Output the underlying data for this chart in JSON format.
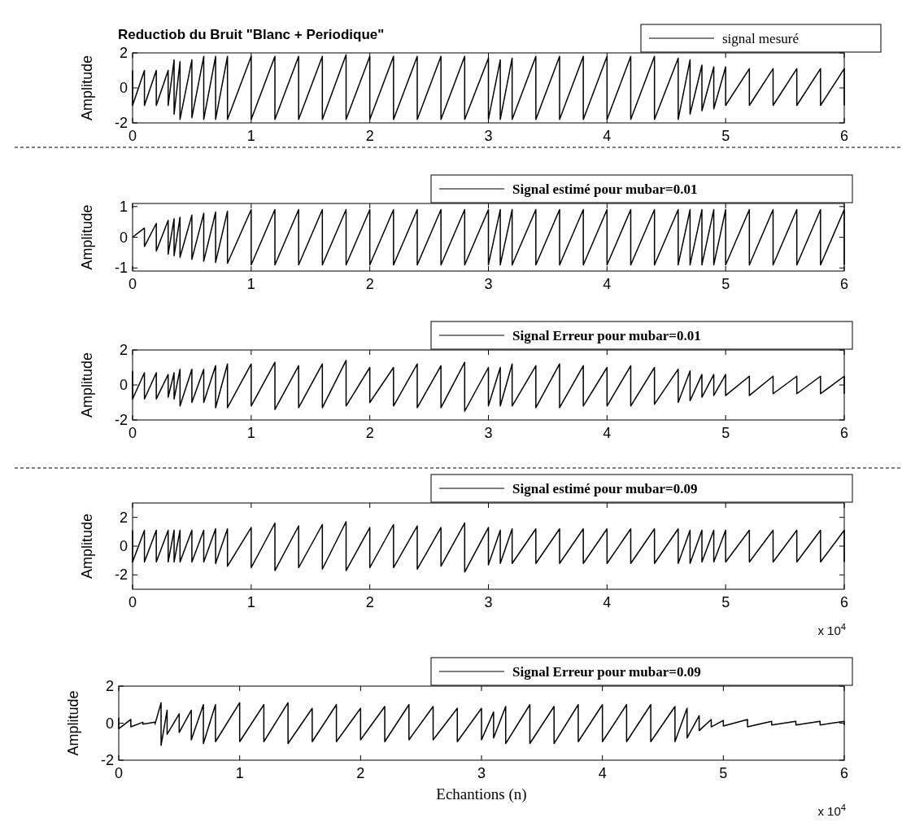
{
  "chart_data": [
    {
      "type": "line",
      "title": "Reductiob du Bruit \"Blanc + Periodique\"",
      "ylabel": "Amplitude",
      "legend": "top right",
      "xlim": [
        0,
        6
      ],
      "xticks": [
        0,
        1,
        2,
        3,
        4,
        5,
        6
      ],
      "ylim": [
        -2,
        2
      ],
      "yticks": [
        -2,
        0,
        2
      ],
      "x": [
        0,
        0,
        0.1,
        0.1,
        0.2,
        0.2,
        0.3,
        0.3,
        0.35,
        0.35,
        0.4,
        0.4,
        0.5,
        0.5,
        0.6,
        0.6,
        0.7,
        0.7,
        0.8,
        0.8,
        1.0,
        1.0,
        1.2,
        1.2,
        1.4,
        1.4,
        1.6,
        1.6,
        1.8,
        1.8,
        2.0,
        2.0,
        2.2,
        2.2,
        2.4,
        2.4,
        2.6,
        2.6,
        2.8,
        2.8,
        3.0,
        3.0,
        3.1,
        3.1,
        3.2,
        3.2,
        3.4,
        3.4,
        3.6,
        3.6,
        3.8,
        3.8,
        4.0,
        4.0,
        4.2,
        4.2,
        4.4,
        4.4,
        4.6,
        4.6,
        4.7,
        4.7,
        4.8,
        4.8,
        4.9,
        4.9,
        5.0,
        5.0,
        5.2,
        5.2,
        5.4,
        5.4,
        5.6,
        5.6,
        5.8,
        5.8,
        6.0,
        6.0
      ],
      "series": [
        {
          "name": "signal mesuré",
          "color": "#000000",
          "values": [
            1.0,
            -1.0,
            1.0,
            -1.0,
            1.0,
            -1.0,
            1.0,
            -1.0,
            1.6,
            -1.5,
            1.5,
            -1.8,
            1.6,
            -1.7,
            1.8,
            -1.8,
            1.8,
            -1.8,
            1.8,
            -1.8,
            1.8,
            -1.8,
            1.8,
            -1.8,
            1.8,
            -1.8,
            1.8,
            -1.8,
            1.9,
            -1.8,
            1.8,
            -1.8,
            1.8,
            -1.8,
            1.8,
            -1.8,
            1.8,
            -1.8,
            1.8,
            -1.8,
            1.7,
            -1.8,
            1.6,
            -1.8,
            1.7,
            -1.8,
            1.8,
            -1.8,
            1.8,
            -1.8,
            1.8,
            -1.8,
            1.8,
            -1.8,
            1.8,
            -1.8,
            1.8,
            -1.8,
            1.7,
            -1.8,
            1.6,
            -1.5,
            1.3,
            -1.3,
            1.2,
            -1.2,
            1.2,
            -1.0,
            1.1,
            -1.0,
            1.1,
            -1.0,
            1.1,
            -1.0,
            1.1,
            -1.0,
            1.1,
            -1.0
          ]
        }
      ]
    },
    {
      "type": "line",
      "ylabel": "Amplitude",
      "legend": "top right",
      "xlim": [
        0,
        6
      ],
      "xticks": [
        0,
        1,
        2,
        3,
        4,
        5,
        6
      ],
      "ylim": [
        -1.1,
        1.1
      ],
      "yticks": [
        -1,
        0,
        1
      ],
      "x": [
        0,
        0,
        0.1,
        0.1,
        0.2,
        0.2,
        0.3,
        0.3,
        0.35,
        0.35,
        0.4,
        0.4,
        0.5,
        0.5,
        0.6,
        0.6,
        0.7,
        0.7,
        0.8,
        0.8,
        1.0,
        1.0,
        1.2,
        1.2,
        1.4,
        1.4,
        1.6,
        1.6,
        1.8,
        1.8,
        2.0,
        2.0,
        2.2,
        2.2,
        2.4,
        2.4,
        2.6,
        2.6,
        2.8,
        2.8,
        3.0,
        3.0,
        3.1,
        3.1,
        3.2,
        3.2,
        3.4,
        3.4,
        3.6,
        3.6,
        3.8,
        3.8,
        4.0,
        4.0,
        4.2,
        4.2,
        4.4,
        4.4,
        4.6,
        4.6,
        4.7,
        4.7,
        4.8,
        4.8,
        4.9,
        4.9,
        5.0,
        5.0,
        5.2,
        5.2,
        5.4,
        5.4,
        5.6,
        5.6,
        5.8,
        5.8,
        6.0,
        6.0
      ],
      "series": [
        {
          "name": "Signal estimé pour mubar=0.01",
          "color": "#000000",
          "values": [
            0,
            0,
            0.3,
            -0.3,
            0.45,
            -0.45,
            0.55,
            -0.55,
            0.6,
            -0.6,
            0.65,
            -0.65,
            0.72,
            -0.72,
            0.78,
            -0.78,
            0.82,
            -0.82,
            0.85,
            -0.85,
            0.9,
            -0.9,
            0.9,
            -0.9,
            0.9,
            -0.9,
            0.9,
            -0.9,
            0.9,
            -0.9,
            0.9,
            -0.9,
            0.9,
            -0.9,
            0.9,
            -0.9,
            0.9,
            -0.9,
            0.9,
            -0.9,
            0.9,
            -0.9,
            0.9,
            -0.9,
            0.9,
            -0.9,
            0.9,
            -0.9,
            0.9,
            -0.9,
            0.9,
            -0.9,
            0.9,
            -0.9,
            0.9,
            -0.9,
            0.9,
            -0.9,
            0.9,
            -0.9,
            0.9,
            -0.9,
            0.9,
            -0.9,
            0.9,
            -0.9,
            0.9,
            -0.9,
            0.9,
            -0.9,
            0.9,
            -0.9,
            0.9,
            -0.9,
            0.9,
            -0.9,
            0.9,
            -0.9
          ]
        }
      ]
    },
    {
      "type": "line",
      "ylabel": "Amplitude",
      "legend": "top right",
      "xlim": [
        0,
        6
      ],
      "xticks": [
        0,
        1,
        2,
        3,
        4,
        5,
        6
      ],
      "ylim": [
        -2,
        2
      ],
      "yticks": [
        -2,
        0,
        2
      ],
      "x": [
        0,
        0,
        0.1,
        0.1,
        0.2,
        0.2,
        0.3,
        0.3,
        0.35,
        0.35,
        0.4,
        0.4,
        0.5,
        0.5,
        0.6,
        0.6,
        0.7,
        0.7,
        0.8,
        0.8,
        1.0,
        1.0,
        1.2,
        1.2,
        1.4,
        1.4,
        1.6,
        1.6,
        1.8,
        1.8,
        2.0,
        2.0,
        2.2,
        2.2,
        2.4,
        2.4,
        2.6,
        2.6,
        2.8,
        2.8,
        3.0,
        3.0,
        3.1,
        3.1,
        3.2,
        3.2,
        3.4,
        3.4,
        3.6,
        3.6,
        3.8,
        3.8,
        4.0,
        4.0,
        4.2,
        4.2,
        4.4,
        4.4,
        4.6,
        4.6,
        4.7,
        4.7,
        4.8,
        4.8,
        4.9,
        4.9,
        5.0,
        5.0,
        5.2,
        5.2,
        5.4,
        5.4,
        5.6,
        5.6,
        5.8,
        5.8,
        6.0,
        6.0
      ],
      "series": [
        {
          "name": "Signal Erreur pour mubar=0.01",
          "color": "#000000",
          "values": [
            0.8,
            -0.8,
            0.7,
            -0.8,
            0.7,
            -0.8,
            0.6,
            -0.7,
            0.7,
            -0.8,
            0.9,
            -1.2,
            0.9,
            -1.0,
            0.9,
            -1.0,
            1.1,
            -1.3,
            1.2,
            -1.3,
            1.2,
            -1.2,
            1.3,
            -1.4,
            1.1,
            -1.3,
            1.2,
            -1.3,
            1.4,
            -1.2,
            1.0,
            -1.0,
            1.0,
            -1.2,
            1.2,
            -1.3,
            1.1,
            -1.3,
            1.3,
            -1.5,
            1.0,
            -1.2,
            1.0,
            -1.2,
            1.2,
            -1.2,
            1.1,
            -1.3,
            1.2,
            -1.3,
            1.1,
            -1.2,
            1.0,
            -1.2,
            1.1,
            -1.2,
            1.0,
            -1.1,
            0.9,
            -1.0,
            0.8,
            -0.9,
            0.6,
            -0.7,
            0.6,
            -0.6,
            0.6,
            -0.6,
            0.5,
            -0.6,
            0.5,
            -0.5,
            0.5,
            -0.5,
            0.5,
            -0.5,
            0.5,
            -0.5
          ]
        }
      ]
    },
    {
      "type": "line",
      "ylabel": "Amplitude",
      "legend": "top right",
      "annotations": [
        "x 10$^{4}$"
      ],
      "xlim": [
        0,
        6
      ],
      "xticks": [
        0,
        1,
        2,
        3,
        4,
        5,
        6
      ],
      "ylim": [
        -3,
        3
      ],
      "yticks": [
        -2,
        0,
        2
      ],
      "x": [
        0,
        0,
        0.1,
        0.1,
        0.2,
        0.2,
        0.3,
        0.3,
        0.35,
        0.35,
        0.4,
        0.4,
        0.5,
        0.5,
        0.6,
        0.6,
        0.7,
        0.7,
        0.8,
        0.8,
        1.0,
        1.0,
        1.2,
        1.2,
        1.4,
        1.4,
        1.6,
        1.6,
        1.8,
        1.8,
        2.0,
        2.0,
        2.2,
        2.2,
        2.4,
        2.4,
        2.6,
        2.6,
        2.8,
        2.8,
        3.0,
        3.0,
        3.1,
        3.1,
        3.2,
        3.2,
        3.4,
        3.4,
        3.6,
        3.6,
        3.8,
        3.8,
        4.0,
        4.0,
        4.2,
        4.2,
        4.4,
        4.4,
        4.6,
        4.6,
        4.7,
        4.7,
        4.8,
        4.8,
        4.9,
        4.9,
        5.0,
        5.0,
        5.2,
        5.2,
        5.4,
        5.4,
        5.6,
        5.6,
        5.8,
        5.8,
        6.0,
        6.0
      ],
      "series": [
        {
          "name": "Signal estimé pour mubar=0.09",
          "color": "#000000",
          "values": [
            1.1,
            -1.1,
            1.1,
            -1.1,
            1.1,
            -1.1,
            1.1,
            -1.1,
            1.1,
            -1.1,
            1.1,
            -1.1,
            1.1,
            -1.1,
            1.1,
            -1.1,
            1.2,
            -1.2,
            1.2,
            -1.4,
            1.3,
            -1.5,
            1.6,
            -1.7,
            1.4,
            -1.5,
            1.5,
            -1.6,
            1.7,
            -1.7,
            1.3,
            -1.5,
            1.5,
            -1.5,
            1.4,
            -1.6,
            1.3,
            -1.4,
            1.6,
            -1.8,
            1.3,
            -1.3,
            1.1,
            -1.2,
            1.2,
            -1.2,
            1.2,
            -1.2,
            1.2,
            -1.2,
            1.2,
            -1.2,
            1.2,
            -1.2,
            1.2,
            -1.2,
            1.2,
            -1.2,
            1.2,
            -1.2,
            1.1,
            -1.2,
            1.1,
            -1.1,
            1.1,
            -1.1,
            1.1,
            -1.1,
            1.1,
            -1.1,
            1.1,
            -1.1,
            1.1,
            -1.1,
            1.1,
            -1.1,
            1.1,
            -1.1
          ]
        }
      ]
    },
    {
      "type": "line",
      "ylabel": "Amplitude",
      "xlabel": "Echantions (n)",
      "legend": "top right",
      "annotations": [
        "x 10$^{4}$"
      ],
      "xlim": [
        0,
        6
      ],
      "xticks": [
        0,
        1,
        2,
        3,
        4,
        5,
        6
      ],
      "ylim": [
        -2,
        2
      ],
      "yticks": [
        -2,
        0,
        2
      ],
      "x": [
        0,
        0,
        0.1,
        0.1,
        0.2,
        0.2,
        0.3,
        0.3,
        0.35,
        0.35,
        0.4,
        0.4,
        0.5,
        0.5,
        0.6,
        0.6,
        0.7,
        0.7,
        0.8,
        0.8,
        1.0,
        1.0,
        1.2,
        1.2,
        1.4,
        1.4,
        1.6,
        1.6,
        1.8,
        1.8,
        2.0,
        2.0,
        2.2,
        2.2,
        2.4,
        2.4,
        2.6,
        2.6,
        2.8,
        2.8,
        3.0,
        3.0,
        3.1,
        3.1,
        3.2,
        3.2,
        3.4,
        3.4,
        3.6,
        3.6,
        3.8,
        3.8,
        4.0,
        4.0,
        4.2,
        4.2,
        4.4,
        4.4,
        4.6,
        4.6,
        4.7,
        4.7,
        4.8,
        4.8,
        4.9,
        4.9,
        5.0,
        5.0,
        5.2,
        5.2,
        5.4,
        5.4,
        5.6,
        5.6,
        5.8,
        5.8,
        6.0,
        6.0
      ],
      "series": [
        {
          "name": "Signal Erreur pour mubar=0.09",
          "color": "#000000",
          "values": [
            0.3,
            -0.3,
            0.2,
            -0.2,
            0.05,
            -0.05,
            0.05,
            -0.05,
            1.1,
            -1.2,
            0.7,
            -0.6,
            0.5,
            -0.5,
            0.7,
            -0.9,
            1.0,
            -1.1,
            1.0,
            -1.0,
            1.1,
            -1.0,
            1.0,
            -1.0,
            1.1,
            -1.1,
            0.8,
            -1.0,
            1.0,
            -1.0,
            0.8,
            -0.9,
            0.9,
            -1.0,
            1.0,
            -0.9,
            0.9,
            -0.9,
            0.8,
            -1.0,
            0.8,
            -0.9,
            0.6,
            -0.8,
            0.9,
            -1.1,
            1.0,
            -1.1,
            0.9,
            -1.1,
            1.0,
            -1.0,
            1.0,
            -1.0,
            1.0,
            -1.0,
            1.0,
            -1.0,
            0.9,
            -1.0,
            0.8,
            -0.8,
            0.4,
            -0.4,
            0.2,
            -0.2,
            0.15,
            -0.15,
            0.2,
            -0.2,
            0.1,
            -0.1,
            0.1,
            -0.1,
            0.1,
            -0.1,
            0.1,
            -0.1
          ]
        }
      ]
    }
  ]
}
